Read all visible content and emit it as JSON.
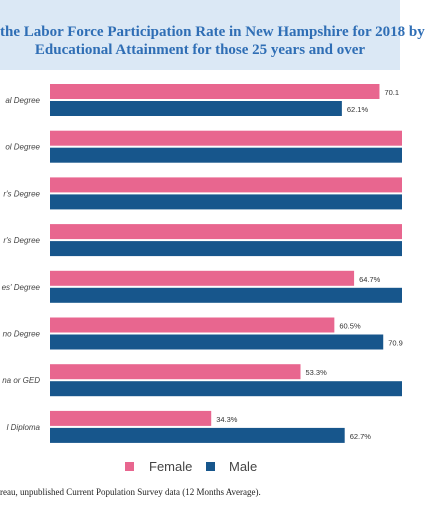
{
  "title_line1": "the Labor Force Participation Rate in New Hampshire for 2018 by",
  "title_line2": "Educational Attainment for those 25 years and over",
  "source": "reau, unpublished Current Population Survey data (12 Months Average).",
  "colors": {
    "female": "#e8668f",
    "male": "#17568c",
    "title_band": "#dbe8f5",
    "title_text": "#2f6eb5"
  },
  "chart_data": {
    "type": "bar",
    "orientation": "horizontal",
    "categories": [
      "al Degree",
      "ol Degree",
      "r's Degree",
      "r's Degree",
      "es' Degree",
      "no Degree",
      "na or GED",
      "l Diploma"
    ],
    "series": [
      {
        "name": "Female",
        "values": [
          70.1,
          null,
          null,
          null,
          64.7,
          60.5,
          53.3,
          34.3
        ],
        "labels": [
          "70.1",
          "",
          "",
          "",
          "64.7%",
          "60.5%",
          "53.3%",
          "34.3%"
        ]
      },
      {
        "name": "Male",
        "values": [
          62.1,
          null,
          null,
          null,
          null,
          70.9,
          null,
          62.7
        ],
        "labels": [
          "62.1%",
          "",
          "",
          "",
          "",
          "70.9",
          "",
          "62.7%"
        ]
      }
    ],
    "legend": [
      "Female",
      "Male"
    ],
    "legend_position": "bottom",
    "grid": false
  }
}
